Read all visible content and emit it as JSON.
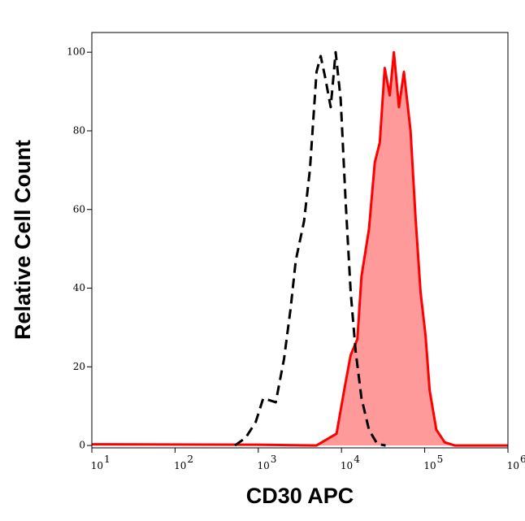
{
  "chart_data": {
    "type": "area",
    "x_label": "CD30 APC",
    "y_label": "Relative Cell Count",
    "xscale": "log",
    "xlim": [
      10,
      1000000
    ],
    "ylim": [
      -0.6,
      105
    ],
    "xticks": [
      {
        "value": 10,
        "label": "10",
        "sup": "1"
      },
      {
        "value": 100,
        "label": "10",
        "sup": "2"
      },
      {
        "value": 1000,
        "label": "10",
        "sup": "3"
      },
      {
        "value": 10000,
        "label": "10",
        "sup": "4"
      },
      {
        "value": 100000,
        "label": "10",
        "sup": "5"
      },
      {
        "value": 1000000,
        "label": "10",
        "sup": "6"
      }
    ],
    "yticks": [
      0,
      20,
      40,
      60,
      80,
      100
    ],
    "series": [
      {
        "color": "#ff0000",
        "fill": "#ff9a9a",
        "dashed": false,
        "x": [
          10,
          1000,
          5000,
          8710,
          10960,
          12880,
          15490,
          17380,
          21380,
          25120,
          28840,
          33110,
          38020,
          42660,
          48980,
          56230,
          67610,
          77620,
          89130,
          102300,
          114800,
          138000,
          173800,
          229100,
          1000000
        ],
        "values": [
          0.3,
          0.2,
          0,
          3,
          15,
          23,
          27,
          43,
          55,
          72,
          77,
          96,
          89,
          100,
          86,
          95,
          80,
          58,
          39,
          28,
          14,
          4,
          0.8,
          0,
          0
        ]
      },
      {
        "color": "#000000",
        "fill": "none",
        "dashed": true,
        "x": [
          525,
          708,
          933,
          1148,
          1622,
          2042,
          2455,
          2818,
          3548,
          4169,
          5012,
          5623,
          6457,
          7413,
          8511,
          9772,
          11220,
          12880,
          14790,
          17380,
          21380,
          26920,
          33880
        ],
        "values": [
          0,
          2,
          6,
          12,
          11,
          22,
          35,
          47,
          57,
          70,
          95,
          99,
          93,
          86,
          100,
          88,
          62,
          39,
          24,
          12,
          4,
          0.4,
          0
        ]
      }
    ]
  }
}
